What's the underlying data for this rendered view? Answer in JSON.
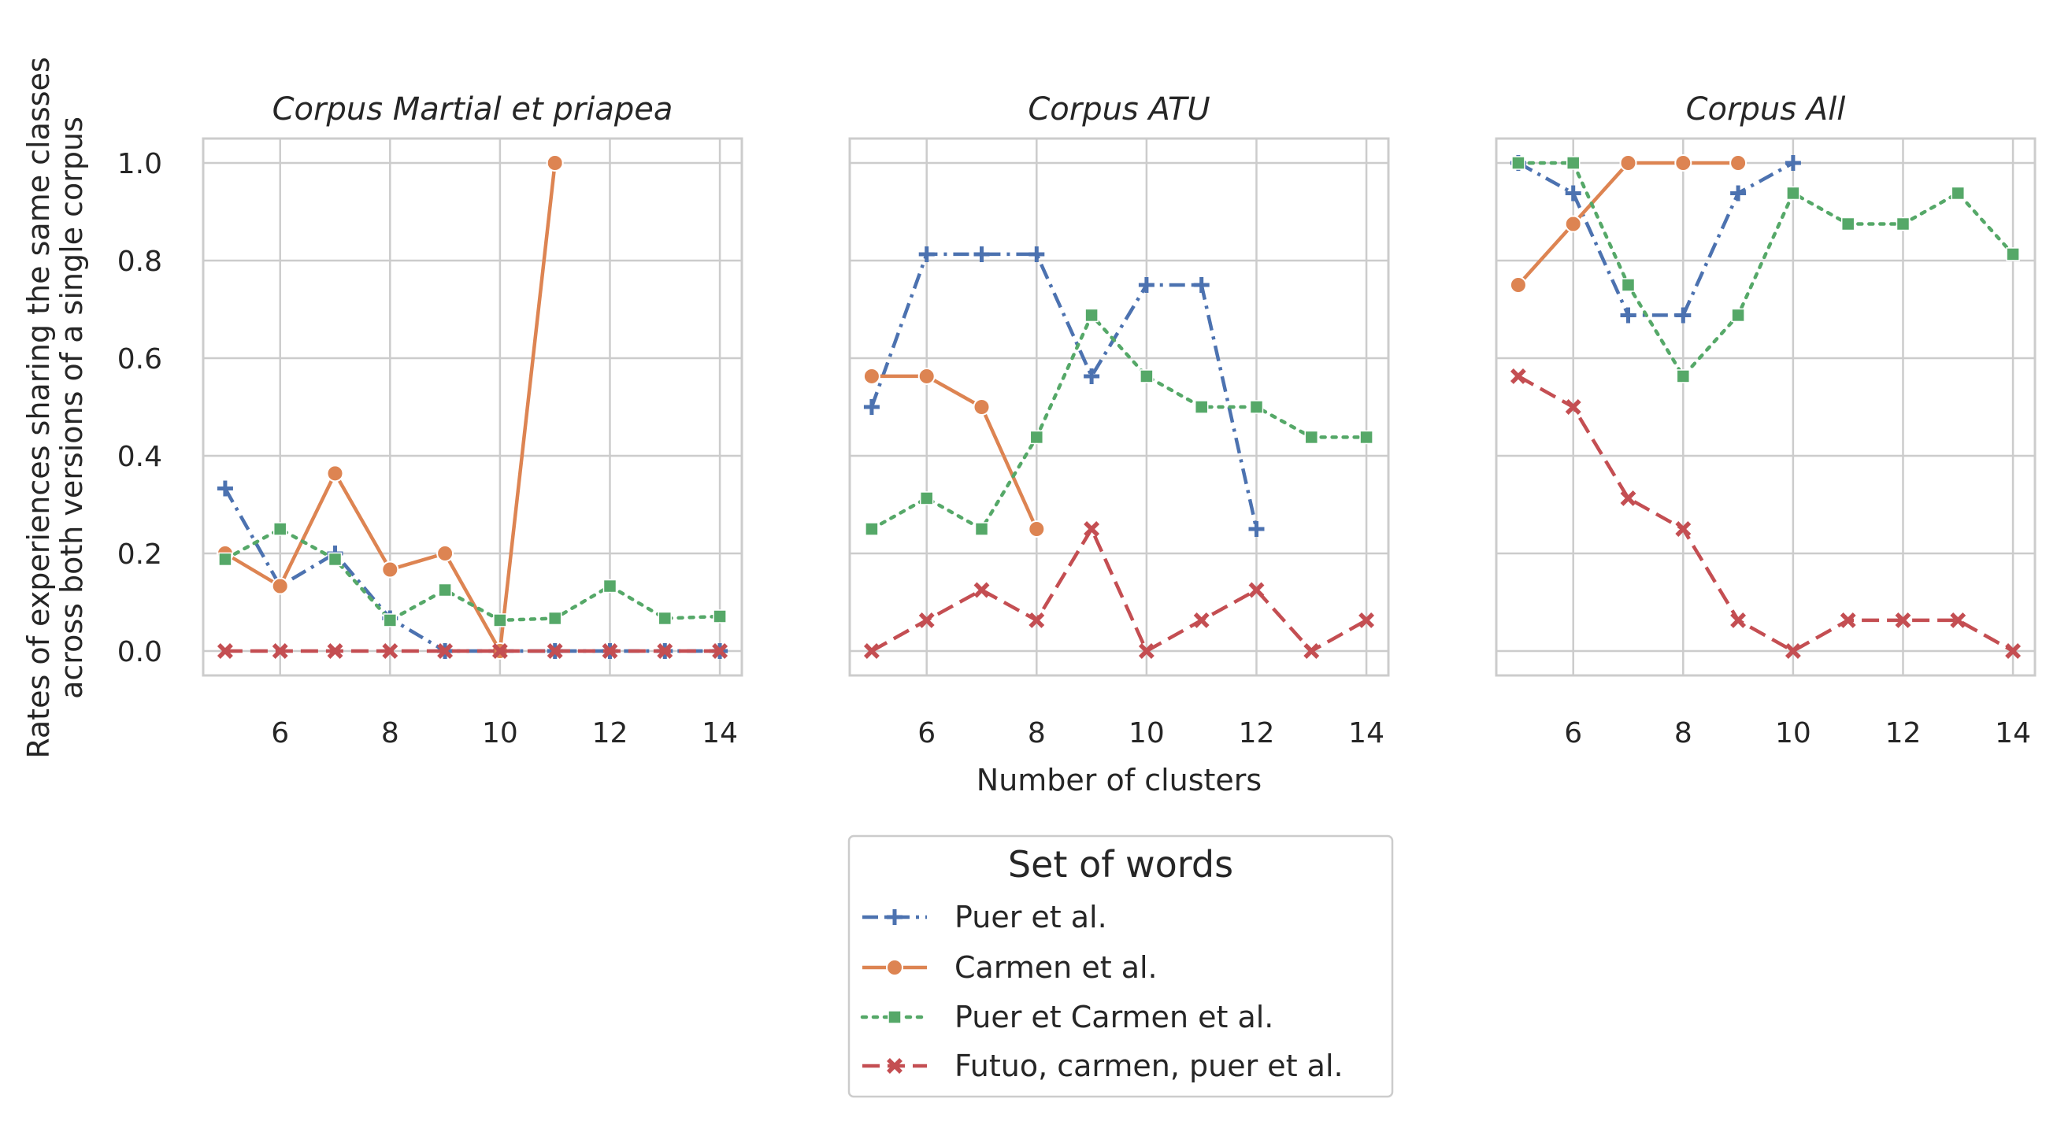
{
  "colors": {
    "blue": "#4C72B0",
    "orange": "#DD8452",
    "green": "#55A868",
    "red": "#C44E52",
    "grid": "#cccccc",
    "frame": "#cccccc",
    "text": "#262626"
  },
  "chart_data": {
    "type": "line",
    "ylabel_lines": [
      "Rates of experiences sharing the same classes",
      "across both versions of a single corpus"
    ],
    "xlabel": "Number of clusters",
    "xlim": [
      4.6,
      14.4
    ],
    "ylim": [
      -0.05,
      1.05
    ],
    "xticks": [
      6,
      8,
      10,
      12,
      14
    ],
    "yticks": [
      0.0,
      0.2,
      0.4,
      0.6,
      0.8,
      1.0
    ],
    "ytick_labels": [
      "0.0",
      "0.2",
      "0.4",
      "0.6",
      "0.8",
      "1.0"
    ],
    "grid": true,
    "legend": {
      "title": "Set of words",
      "placement": "bottom-center-outside",
      "entries": [
        {
          "label": "Puer et al.",
          "color": "blue",
          "dash": "dashdot",
          "marker": "plus"
        },
        {
          "label": "Carmen et al.",
          "color": "orange",
          "dash": "solid",
          "marker": "circle"
        },
        {
          "label": "Puer et Carmen et al.",
          "color": "green",
          "dash": "dotted",
          "marker": "square"
        },
        {
          "label": "Futuo, carmen, puer et al.",
          "color": "red",
          "dash": "dashed",
          "marker": "x"
        }
      ]
    },
    "panels": [
      {
        "title": "Corpus Martial et priapea",
        "series": [
          {
            "legend_index": 0,
            "x": [
              5,
              6,
              7,
              8,
              9,
              10,
              11,
              12,
              13,
              14
            ],
            "y": [
              0.333,
              0.133,
              0.2,
              0.067,
              0.0,
              0.0,
              0.0,
              0.0,
              0.0,
              0.0
            ]
          },
          {
            "legend_index": 1,
            "x": [
              5,
              6,
              7,
              8,
              9,
              10,
              11
            ],
            "y": [
              0.2,
              0.133,
              0.364,
              0.167,
              0.2,
              0.0,
              1.0
            ]
          },
          {
            "legend_index": 2,
            "x": [
              5,
              6,
              7,
              8,
              9,
              10,
              11,
              12,
              13,
              14
            ],
            "y": [
              0.188,
              0.25,
              0.188,
              0.063,
              0.125,
              0.063,
              0.067,
              0.133,
              0.067,
              0.071
            ]
          },
          {
            "legend_index": 3,
            "x": [
              5,
              6,
              7,
              8,
              9,
              10,
              11,
              12,
              13,
              14
            ],
            "y": [
              0.0,
              0.0,
              0.0,
              0.0,
              0.0,
              0.0,
              0.0,
              0.0,
              0.0,
              0.0
            ]
          }
        ]
      },
      {
        "title": "Corpus ATU",
        "series": [
          {
            "legend_index": 0,
            "x": [
              5,
              6,
              7,
              8,
              9,
              10,
              11,
              12
            ],
            "y": [
              0.5,
              0.813,
              0.813,
              0.813,
              0.563,
              0.75,
              0.75,
              0.25
            ]
          },
          {
            "legend_index": 1,
            "x": [
              5,
              6,
              7,
              8
            ],
            "y": [
              0.563,
              0.563,
              0.5,
              0.25
            ]
          },
          {
            "legend_index": 2,
            "x": [
              5,
              6,
              7,
              8,
              9,
              10,
              11,
              12,
              13,
              14
            ],
            "y": [
              0.25,
              0.313,
              0.25,
              0.438,
              0.688,
              0.563,
              0.5,
              0.5,
              0.438,
              0.438
            ]
          },
          {
            "legend_index": 3,
            "x": [
              5,
              6,
              7,
              8,
              9,
              10,
              11,
              12,
              13,
              14
            ],
            "y": [
              0.0,
              0.063,
              0.125,
              0.063,
              0.25,
              0.0,
              0.063,
              0.125,
              0.0,
              0.063
            ]
          }
        ]
      },
      {
        "title": "Corpus All",
        "series": [
          {
            "legend_index": 0,
            "x": [
              5,
              6,
              7,
              8,
              9,
              10
            ],
            "y": [
              1.0,
              0.938,
              0.688,
              0.688,
              0.938,
              1.0
            ]
          },
          {
            "legend_index": 1,
            "x": [
              5,
              6,
              7,
              8,
              9
            ],
            "y": [
              0.75,
              0.875,
              1.0,
              1.0,
              1.0
            ]
          },
          {
            "legend_index": 2,
            "x": [
              5,
              6,
              7,
              8,
              9,
              10,
              11,
              12,
              13,
              14
            ],
            "y": [
              1.0,
              1.0,
              0.75,
              0.563,
              0.688,
              0.938,
              0.875,
              0.875,
              0.938,
              0.813
            ]
          },
          {
            "legend_index": 3,
            "x": [
              5,
              6,
              7,
              8,
              9,
              10,
              11,
              12,
              13,
              14
            ],
            "y": [
              0.563,
              0.5,
              0.313,
              0.25,
              0.063,
              0.0,
              0.063,
              0.063,
              0.063,
              0.0
            ]
          }
        ]
      }
    ]
  }
}
